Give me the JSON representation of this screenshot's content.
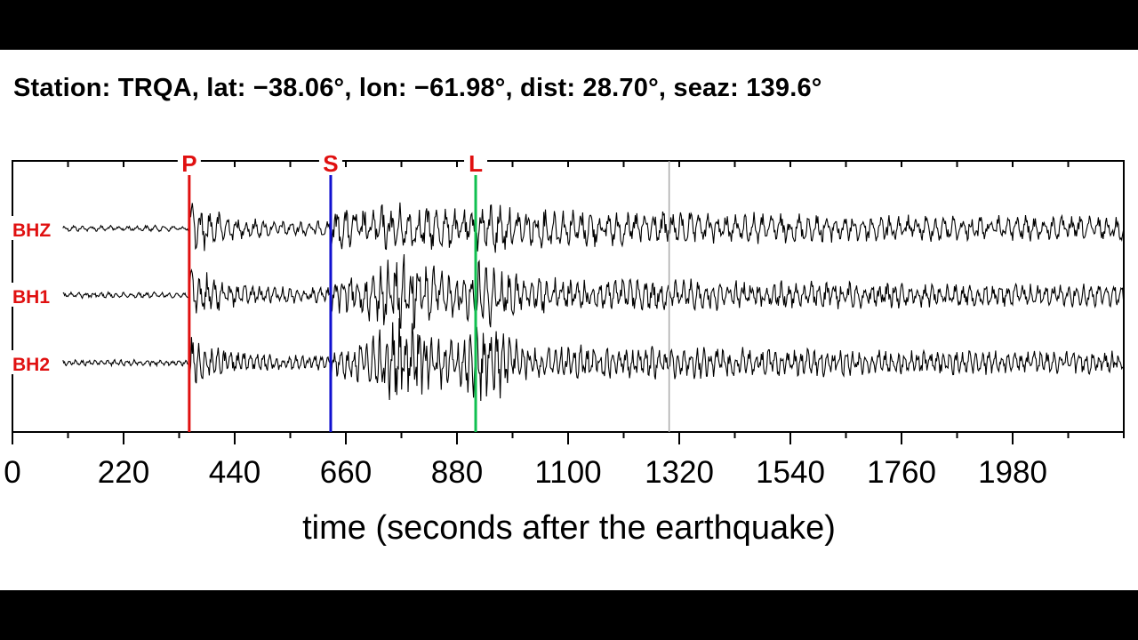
{
  "title": "Station: TRQA, lat: −38.06°, lon: −61.98°, dist: 28.70°, seaz: 139.6°",
  "chart_data": {
    "type": "line",
    "xlabel": "time (seconds after the earthquake)",
    "xlim": [
      0,
      2200
    ],
    "x_ticks": [
      0,
      220,
      440,
      660,
      880,
      1100,
      1320,
      1540,
      1760,
      1980
    ],
    "x_tick_labels": [
      "0",
      "220",
      "440",
      "660",
      "880",
      "1100",
      "1320",
      "1540",
      "1760",
      "1980"
    ],
    "minor_tick_step": 110,
    "trace_start": 100,
    "current_time_marker": 1300,
    "phases": [
      {
        "label": "P",
        "time": 350,
        "color": "#e01010",
        "label_color": "#e01010"
      },
      {
        "label": "S",
        "time": 630,
        "color": "#1010d0",
        "label_color": "#e01010"
      },
      {
        "label": "L",
        "time": 917,
        "color": "#10c050",
        "label_color": "#e01010"
      }
    ],
    "series": [
      {
        "name": "BHZ",
        "color": "#000000",
        "label_color": "#e01010"
      },
      {
        "name": "BH1",
        "color": "#000000",
        "label_color": "#e01010"
      },
      {
        "name": "BH2",
        "color": "#000000",
        "label_color": "#e01010"
      }
    ]
  }
}
